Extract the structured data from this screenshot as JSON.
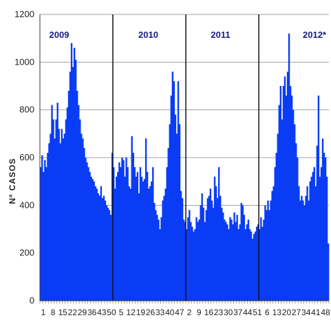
{
  "chart_data": {
    "type": "bar",
    "title": "",
    "xlabel": "",
    "ylabel": "Nº CASOS",
    "ylim": [
      0,
      1200
    ],
    "yticks": [
      0,
      200,
      400,
      600,
      800,
      1000,
      1200
    ],
    "grid": true,
    "year_labels": [
      "2009",
      "2010",
      "2011",
      "2012*"
    ],
    "x_tick_labels": [
      "1",
      "8",
      "15",
      "22",
      "29",
      "36",
      "43",
      "50",
      "5",
      "12",
      "19",
      "26",
      "33",
      "40",
      "47",
      "2",
      "9",
      "16",
      "23",
      "30",
      "37",
      "44",
      "51",
      "6",
      "13",
      "20",
      "27",
      "34",
      "41",
      "48"
    ],
    "bar_color": "#0a3cf5",
    "series": [
      {
        "values": [
          560,
          610,
          540,
          590,
          560,
          620,
          660,
          700,
          820,
          760,
          680,
          760,
          830,
          720,
          660,
          720,
          680,
          700,
          760,
          810,
          880,
          960,
          1080,
          980,
          1060,
          1010,
          880,
          820,
          760,
          700,
          680,
          640,
          600,
          580,
          560,
          540,
          520,
          510,
          500,
          480,
          470,
          450,
          440,
          480,
          430,
          440,
          420,
          400,
          390,
          380,
          360,
          620,
          560,
          470,
          520,
          540,
          580,
          560,
          600,
          590,
          520,
          600,
          560,
          480,
          470,
          690,
          620,
          560,
          520,
          540,
          450,
          560,
          520,
          500,
          510,
          680,
          540,
          470,
          480,
          500,
          560,
          410,
          380,
          360,
          340,
          300,
          350,
          420,
          440,
          470,
          560,
          640,
          740,
          860,
          960,
          920,
          780,
          700,
          920,
          740,
          460,
          430,
          340,
          330,
          300,
          350,
          380,
          330,
          310,
          290,
          300,
          350,
          330,
          340,
          400,
          450,
          390,
          330,
          380,
          430,
          440,
          470,
          420,
          390,
          520,
          480,
          430,
          560,
          440,
          390,
          370,
          340,
          330,
          320,
          300,
          350,
          340,
          320,
          370,
          330,
          360,
          300,
          320,
          410,
          400,
          360,
          300,
          320,
          340,
          300,
          290,
          260,
          280,
          290,
          310,
          320,
          300,
          350,
          310,
          340,
          400,
          380,
          420,
          380,
          420,
          460,
          480,
          560,
          620,
          700,
          820,
          900,
          760,
          900,
          940,
          860,
          960,
          1120,
          900,
          860,
          800,
          740,
          660,
          600,
          480,
          420,
          440,
          420,
          400,
          440,
          480,
          420,
          500,
          520,
          540,
          560,
          480,
          650,
          860,
          520,
          560,
          680,
          620,
          600,
          520,
          240
        ]
      }
    ]
  }
}
